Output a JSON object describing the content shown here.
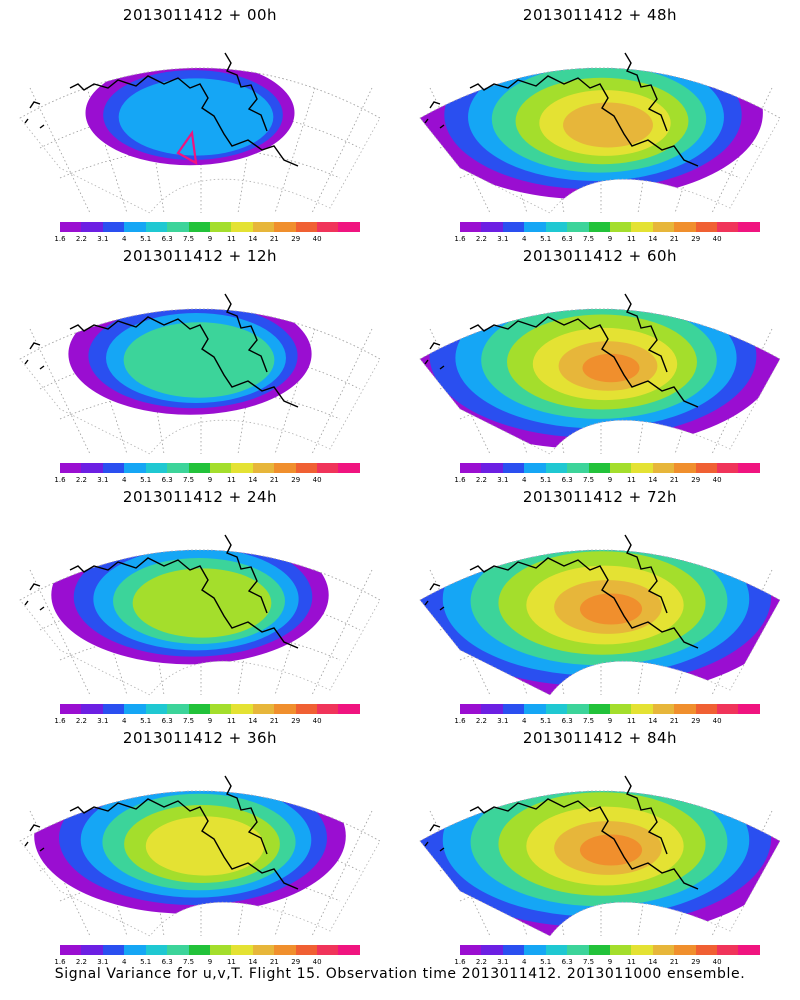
{
  "panels": [
    {
      "title": "2013011412 + 00h",
      "level": 0
    },
    {
      "title": "2013011412 + 48h",
      "level": 4
    },
    {
      "title": "2013011412 + 12h",
      "level": 1
    },
    {
      "title": "2013011412 + 60h",
      "level": 5
    },
    {
      "title": "2013011412 + 24h",
      "level": 2
    },
    {
      "title": "2013011412 + 72h",
      "level": 6
    },
    {
      "title": "2013011412 + 36h",
      "level": 3
    },
    {
      "title": "2013011412 + 84h",
      "level": 6
    }
  ],
  "colorbar": {
    "colors": [
      "#9a0ed1",
      "#6c1fe3",
      "#2a4ff0",
      "#15a6f5",
      "#1fc8d2",
      "#3cd49a",
      "#22c23a",
      "#a4de2c",
      "#e4e233",
      "#e7b63a",
      "#f08f2d",
      "#f06033",
      "#f0345a",
      "#f0147f"
    ],
    "labels": [
      "1.6",
      "2.2",
      "3.1",
      "4",
      "5.1",
      "6.3",
      "7.5",
      "9",
      "11",
      "14",
      "21",
      "29",
      "40"
    ]
  },
  "footer": "Signal Variance for u,v,T. Flight 15. Observation time 2013011412. 2013011000 ensemble."
}
